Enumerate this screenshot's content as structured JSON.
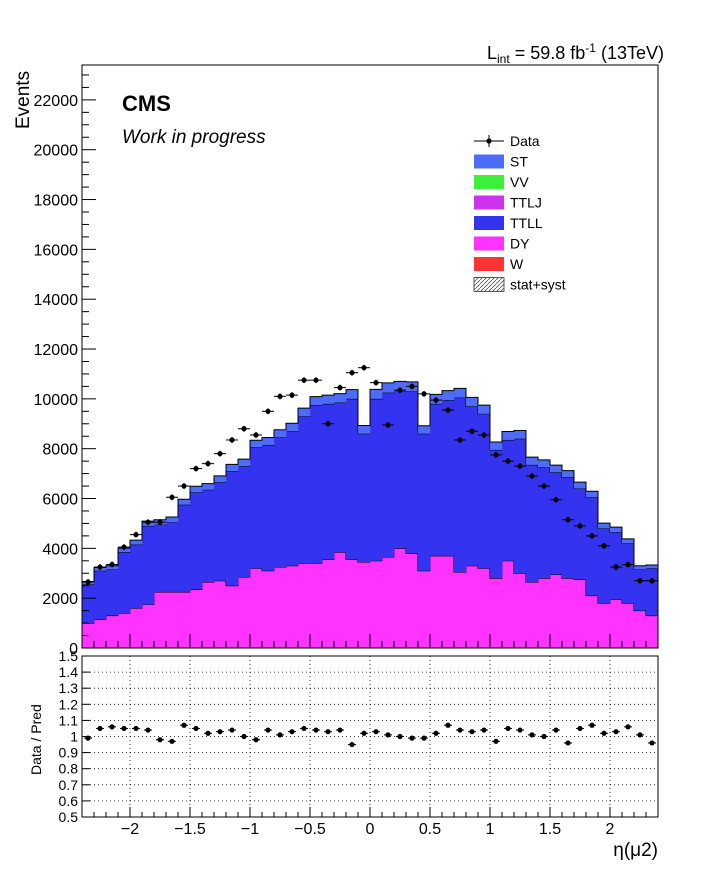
{
  "chart_data": {
    "type": "bar",
    "lumi_label": "59.8 fb",
    "lumi_prefix": "L",
    "lumi_sub": "int",
    "lumi_eq": "=",
    "lumi_sup": "-1",
    "lumi_energy": "(13TeV)",
    "cms_label": "CMS",
    "work_label": "Work in progress",
    "ylabel": "Events",
    "xlabel": "η(μ2)",
    "ratio_ylabel": "Data / Pred",
    "xlim": [
      -2.4,
      2.4
    ],
    "ylim": [
      0,
      23400
    ],
    "ratio_ylim": [
      0.5,
      1.5
    ],
    "n_bins": 48,
    "y_ticks": [
      0,
      2000,
      4000,
      6000,
      8000,
      10000,
      12000,
      14000,
      16000,
      18000,
      20000,
      22000
    ],
    "y_tick_labels": [
      "0",
      "2000",
      "4000",
      "6000",
      "8000",
      "10000",
      "12000",
      "14000",
      "16000",
      "18000",
      "20000",
      "22000"
    ],
    "x_ticks": [
      -2,
      -1.5,
      -1,
      -0.5,
      0,
      0.5,
      1,
      1.5,
      2
    ],
    "x_tick_labels": [
      "−2",
      "−1.5",
      "−1",
      "−0.5",
      "0",
      "0.5",
      "1",
      "1.5",
      "2"
    ],
    "ratio_ticks": [
      0.5,
      0.6,
      0.7,
      0.8,
      0.9,
      1,
      1.1,
      1.2,
      1.3,
      1.4,
      1.5
    ],
    "ratio_tick_labels": [
      "0.5",
      "0.6",
      "0.7",
      "0.8",
      "0.9",
      "1",
      "1.1",
      "1.2",
      "1.3",
      "1.4",
      "1.5"
    ],
    "legend": [
      {
        "name": "Data",
        "kind": "marker"
      },
      {
        "name": "ST",
        "kind": "fill",
        "color": "#4d6cf8"
      },
      {
        "name": "VV",
        "kind": "fill",
        "color": "#3cf03c"
      },
      {
        "name": "TTLJ",
        "kind": "fill",
        "color": "#cc33ee"
      },
      {
        "name": "TTLL",
        "kind": "fill",
        "color": "#3333f0"
      },
      {
        "name": "DY",
        "kind": "fill",
        "color": "#ff33ff"
      },
      {
        "name": "W",
        "kind": "fill",
        "color": "#ff3333"
      },
      {
        "name": "stat+syst",
        "kind": "hatch"
      }
    ],
    "stack_colors": {
      "DY": "#ff33ff",
      "TTLL": "#3333f0",
      "ST": "#4d6cf8"
    },
    "series": [
      {
        "name": "DY",
        "values": [
          1000,
          1150,
          1300,
          1400,
          1600,
          1750,
          2250,
          2250,
          2250,
          2350,
          2650,
          2700,
          2500,
          2850,
          3200,
          3100,
          3250,
          3300,
          3400,
          3400,
          3550,
          3850,
          3550,
          3450,
          3500,
          3650,
          4000,
          3800,
          3100,
          3700,
          3700,
          3050,
          3300,
          3200,
          2800,
          3500,
          3000,
          2650,
          2800,
          2950,
          2800,
          2750,
          2100,
          1800,
          1950,
          1800,
          1500,
          1300
        ]
      },
      {
        "name": "TTLL",
        "values": [
          1550,
          1950,
          1850,
          2450,
          2550,
          3150,
          2700,
          2800,
          3500,
          3900,
          3700,
          3950,
          4600,
          4450,
          4850,
          5050,
          5200,
          5400,
          5900,
          6350,
          6250,
          6000,
          6450,
          5150,
          6500,
          6600,
          6300,
          6500,
          5500,
          6100,
          6250,
          7000,
          6400,
          6200,
          5150,
          4850,
          5400,
          4700,
          4450,
          4100,
          4050,
          3650,
          3950,
          3000,
          2700,
          2400,
          1650,
          1900
        ]
      },
      {
        "name": "ST",
        "values": [
          120,
          130,
          150,
          160,
          180,
          190,
          200,
          210,
          220,
          240,
          250,
          260,
          270,
          280,
          290,
          300,
          310,
          320,
          330,
          340,
          350,
          360,
          370,
          330,
          380,
          390,
          400,
          380,
          320,
          380,
          380,
          370,
          360,
          350,
          320,
          340,
          330,
          310,
          300,
          290,
          270,
          260,
          240,
          210,
          200,
          180,
          150,
          130
        ]
      }
    ],
    "data_values": [
      2650,
      3250,
      3350,
      4050,
      4550,
      5050,
      5050,
      6050,
      6500,
      7200,
      7400,
      7800,
      8350,
      8800,
      8550,
      9500,
      10100,
      10150,
      10750,
      10750,
      9000,
      10450,
      11050,
      11250,
      10650,
      8950,
      10350,
      10500,
      10200,
      9950,
      9550,
      8350,
      8700,
      8550,
      7750,
      7500,
      7300,
      6900,
      6500,
      5950,
      5150,
      4900,
      4500,
      4100,
      3250,
      3350,
      2700,
      2700
    ],
    "ratio_values": [
      0.99,
      1.05,
      1.06,
      1.05,
      1.05,
      1.04,
      0.98,
      0.97,
      1.07,
      1.05,
      1.02,
      1.03,
      1.04,
      1.0,
      0.98,
      1.04,
      1.01,
      1.03,
      1.05,
      1.04,
      1.03,
      1.04,
      0.95,
      1.02,
      1.03,
      1.01,
      1.0,
      0.99,
      0.99,
      1.02,
      1.07,
      1.04,
      1.03,
      1.04,
      0.97,
      1.05,
      1.04,
      1.01,
      1.0,
      1.04,
      0.96,
      1.05,
      1.07,
      1.02,
      1.03,
      1.06,
      1.01,
      0.96
    ]
  }
}
